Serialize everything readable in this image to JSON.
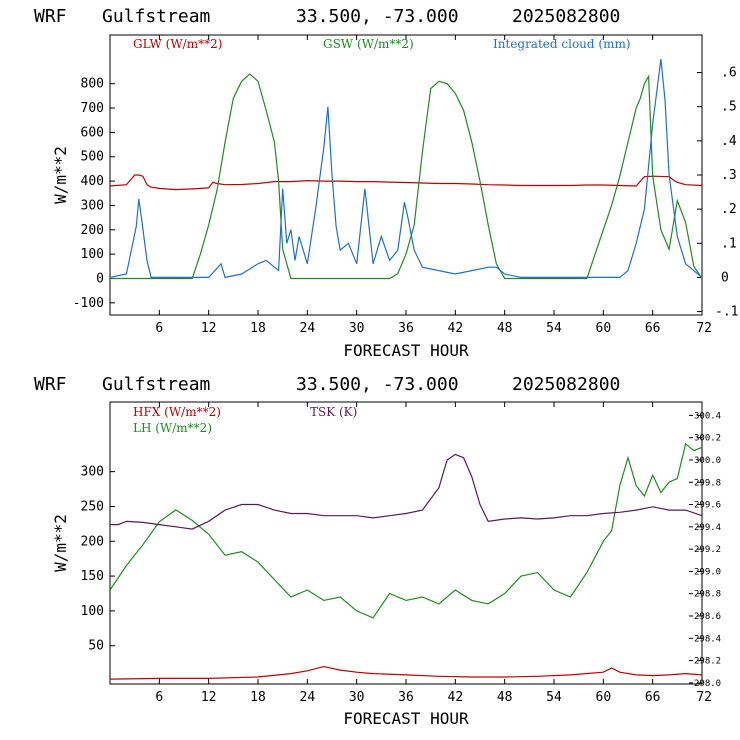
{
  "chart_data": [
    {
      "type": "line",
      "header": {
        "model": "WRF",
        "region": "Gulfstream",
        "coords": "33.500, -73.000",
        "init": "2025082800"
      },
      "xlabel": "FORECAST HOUR",
      "ylabel": "W/m**2",
      "xlim": [
        0,
        72
      ],
      "ylim": [
        -150,
        1000
      ],
      "yticks": [
        -100,
        0,
        100,
        200,
        300,
        400,
        500,
        600,
        700,
        800
      ],
      "xticks": [
        6,
        12,
        18,
        24,
        30,
        36,
        42,
        48,
        54,
        60,
        66,
        72
      ],
      "y2lim": [
        -0.11,
        0.71
      ],
      "y2ticks": [
        -0.1,
        0,
        0.1,
        0.2,
        0.3,
        0.4,
        0.5,
        0.6
      ],
      "y2ticklabels": [
        "-.1",
        "0",
        ".1",
        ".2",
        ".3",
        ".4",
        ".5",
        ".6"
      ],
      "series": [
        {
          "name": "GLW (W/m**2)",
          "color": "#c00000",
          "axis": "left",
          "x": [
            0,
            2,
            2.5,
            3,
            3.5,
            4,
            4.5,
            5,
            6,
            8,
            10,
            12,
            12.5,
            13,
            14,
            16,
            18,
            20,
            22,
            24,
            26,
            28,
            30,
            32,
            34,
            36,
            38,
            40,
            42,
            44,
            46,
            48,
            50,
            52,
            54,
            56,
            58,
            60,
            62,
            64,
            64.5,
            65,
            66,
            68,
            68.5,
            69,
            70,
            72
          ],
          "y": [
            380,
            385,
            405,
            425,
            425,
            420,
            385,
            375,
            370,
            365,
            368,
            372,
            395,
            390,
            385,
            386,
            390,
            398,
            398,
            402,
            400,
            400,
            398,
            398,
            396,
            394,
            392,
            390,
            390,
            388,
            385,
            384,
            382,
            382,
            382,
            382,
            384,
            384,
            382,
            380,
            400,
            418,
            420,
            418,
            405,
            395,
            385,
            382
          ]
        },
        {
          "name": "GSW (W/m**2)",
          "color": "#1e8c1e",
          "axis": "left",
          "x": [
            0,
            10,
            11,
            12,
            13,
            14,
            15,
            16,
            17,
            18,
            19,
            20,
            20.5,
            21,
            22,
            24,
            34,
            35,
            36,
            37,
            38,
            39,
            40,
            41,
            42,
            43,
            44,
            45,
            46,
            47,
            48,
            58,
            59,
            60,
            61,
            62,
            63,
            64,
            64.5,
            65,
            65.5,
            66,
            67,
            68,
            69,
            70,
            71,
            72
          ],
          "y": [
            0,
            0,
            100,
            220,
            360,
            560,
            740,
            810,
            840,
            810,
            690,
            560,
            400,
            120,
            0,
            0,
            0,
            20,
            100,
            220,
            520,
            780,
            810,
            800,
            760,
            690,
            560,
            400,
            220,
            60,
            0,
            0,
            100,
            200,
            300,
            420,
            560,
            700,
            740,
            800,
            830,
            420,
            200,
            120,
            320,
            230,
            50,
            0
          ]
        },
        {
          "name": "Integrated cloud (mm)",
          "color": "#1f6fd1",
          "axis": "right",
          "x": [
            0,
            2,
            3.2,
            3.5,
            3.8,
            4.5,
            5,
            10,
            12,
            13.5,
            14,
            16,
            18,
            19,
            20,
            20.5,
            21,
            21.5,
            22,
            22.5,
            23,
            23.5,
            24,
            25,
            26,
            26.5,
            27,
            27.5,
            28,
            29,
            30,
            31,
            32,
            33,
            34,
            35,
            35.8,
            36.2,
            37,
            38,
            40,
            42,
            44,
            46,
            47,
            48,
            50,
            60,
            62,
            63,
            64,
            65,
            66,
            67,
            67.5,
            68,
            69,
            70,
            72
          ],
          "y": [
            0,
            0.01,
            0.15,
            0.23,
            0.18,
            0.05,
            0,
            0,
            0,
            0.04,
            0,
            0.01,
            0.04,
            0.05,
            0.03,
            0.02,
            0.26,
            0.1,
            0.14,
            0.05,
            0.12,
            0.08,
            0.04,
            0.2,
            0.38,
            0.5,
            0.3,
            0.15,
            0.08,
            0.1,
            0.04,
            0.26,
            0.04,
            0.12,
            0.05,
            0.08,
            0.22,
            0.18,
            0.08,
            0.03,
            0.02,
            0.01,
            0.02,
            0.03,
            0.03,
            0.01,
            0,
            0,
            0,
            0.02,
            0.1,
            0.2,
            0.45,
            0.64,
            0.52,
            0.3,
            0.12,
            0.04,
            0
          ]
        }
      ]
    },
    {
      "type": "line",
      "header": {
        "model": "WRF",
        "region": "Gulfstream",
        "coords": "33.500, -73.000",
        "init": "2025082800"
      },
      "xlabel": "FORECAST HOUR",
      "ylabel": "W/m**2",
      "xlim": [
        0,
        72
      ],
      "ylim": [
        -5,
        400
      ],
      "yticks": [
        50,
        100,
        150,
        200,
        250,
        300
      ],
      "xticks": [
        6,
        12,
        18,
        24,
        30,
        36,
        42,
        48,
        54,
        60,
        66,
        72
      ],
      "y2lim": [
        297.99,
        300.52
      ],
      "y2ticks": [
        298.0,
        298.2,
        298.4,
        298.6,
        298.8,
        299.0,
        299.2,
        299.4,
        299.6,
        299.8,
        300.0,
        300.2,
        300.4
      ],
      "y2ticklabels": [
        "298.0",
        "298.2",
        "298.4",
        "298.6",
        "298.8",
        "299.0",
        "299.2",
        "299.4",
        "299.6",
        "299.8",
        "300.0",
        "300.2",
        "300.4"
      ],
      "series": [
        {
          "name": "HFX (W/m**2)",
          "color": "#c00000",
          "axis": "left",
          "x": [
            0,
            6,
            12,
            18,
            22,
            24,
            26,
            28,
            30,
            32,
            36,
            40,
            44,
            48,
            52,
            56,
            60,
            61,
            62,
            64,
            66,
            68,
            70,
            72
          ],
          "y": [
            2,
            3,
            3,
            5,
            10,
            14,
            20,
            15,
            12,
            10,
            8,
            6,
            5,
            5,
            6,
            8,
            12,
            18,
            12,
            8,
            7,
            8,
            10,
            8
          ]
        },
        {
          "name": "LH (W/m**2)",
          "color": "#1e8c1e",
          "axis": "left",
          "x": [
            0,
            2,
            4,
            6,
            8,
            10,
            12,
            14,
            16,
            18,
            20,
            22,
            24,
            26,
            28,
            30,
            32,
            34,
            36,
            38,
            40,
            42,
            44,
            46,
            48,
            50,
            52,
            54,
            56,
            58,
            60,
            61,
            62,
            63,
            64,
            65,
            66,
            67,
            68,
            69,
            70,
            71,
            72
          ],
          "y": [
            130,
            165,
            195,
            228,
            245,
            230,
            210,
            180,
            185,
            170,
            145,
            120,
            130,
            115,
            120,
            100,
            90,
            125,
            115,
            120,
            110,
            130,
            115,
            110,
            125,
            150,
            155,
            130,
            120,
            155,
            200,
            215,
            280,
            320,
            280,
            265,
            295,
            270,
            285,
            290,
            340,
            330,
            335
          ]
        },
        {
          "name": "TSK (K)",
          "color": "#5a1a5a",
          "axis": "right",
          "x": [
            0,
            1,
            2,
            4,
            6,
            8,
            10,
            12,
            14,
            16,
            18,
            20,
            22,
            24,
            26,
            28,
            30,
            32,
            34,
            36,
            38,
            40,
            41,
            42,
            43,
            44,
            45,
            46,
            48,
            50,
            52,
            54,
            56,
            58,
            60,
            62,
            64,
            66,
            68,
            70,
            72
          ],
          "y": [
            299.42,
            299.42,
            299.45,
            299.44,
            299.42,
            299.4,
            299.38,
            299.45,
            299.55,
            299.6,
            299.6,
            299.55,
            299.52,
            299.52,
            299.5,
            299.5,
            299.5,
            299.48,
            299.5,
            299.52,
            299.55,
            299.75,
            300.0,
            300.05,
            300.02,
            299.85,
            299.6,
            299.45,
            299.47,
            299.48,
            299.47,
            299.48,
            299.5,
            299.5,
            299.52,
            299.53,
            299.55,
            299.58,
            299.55,
            299.55,
            299.5
          ]
        }
      ]
    }
  ]
}
